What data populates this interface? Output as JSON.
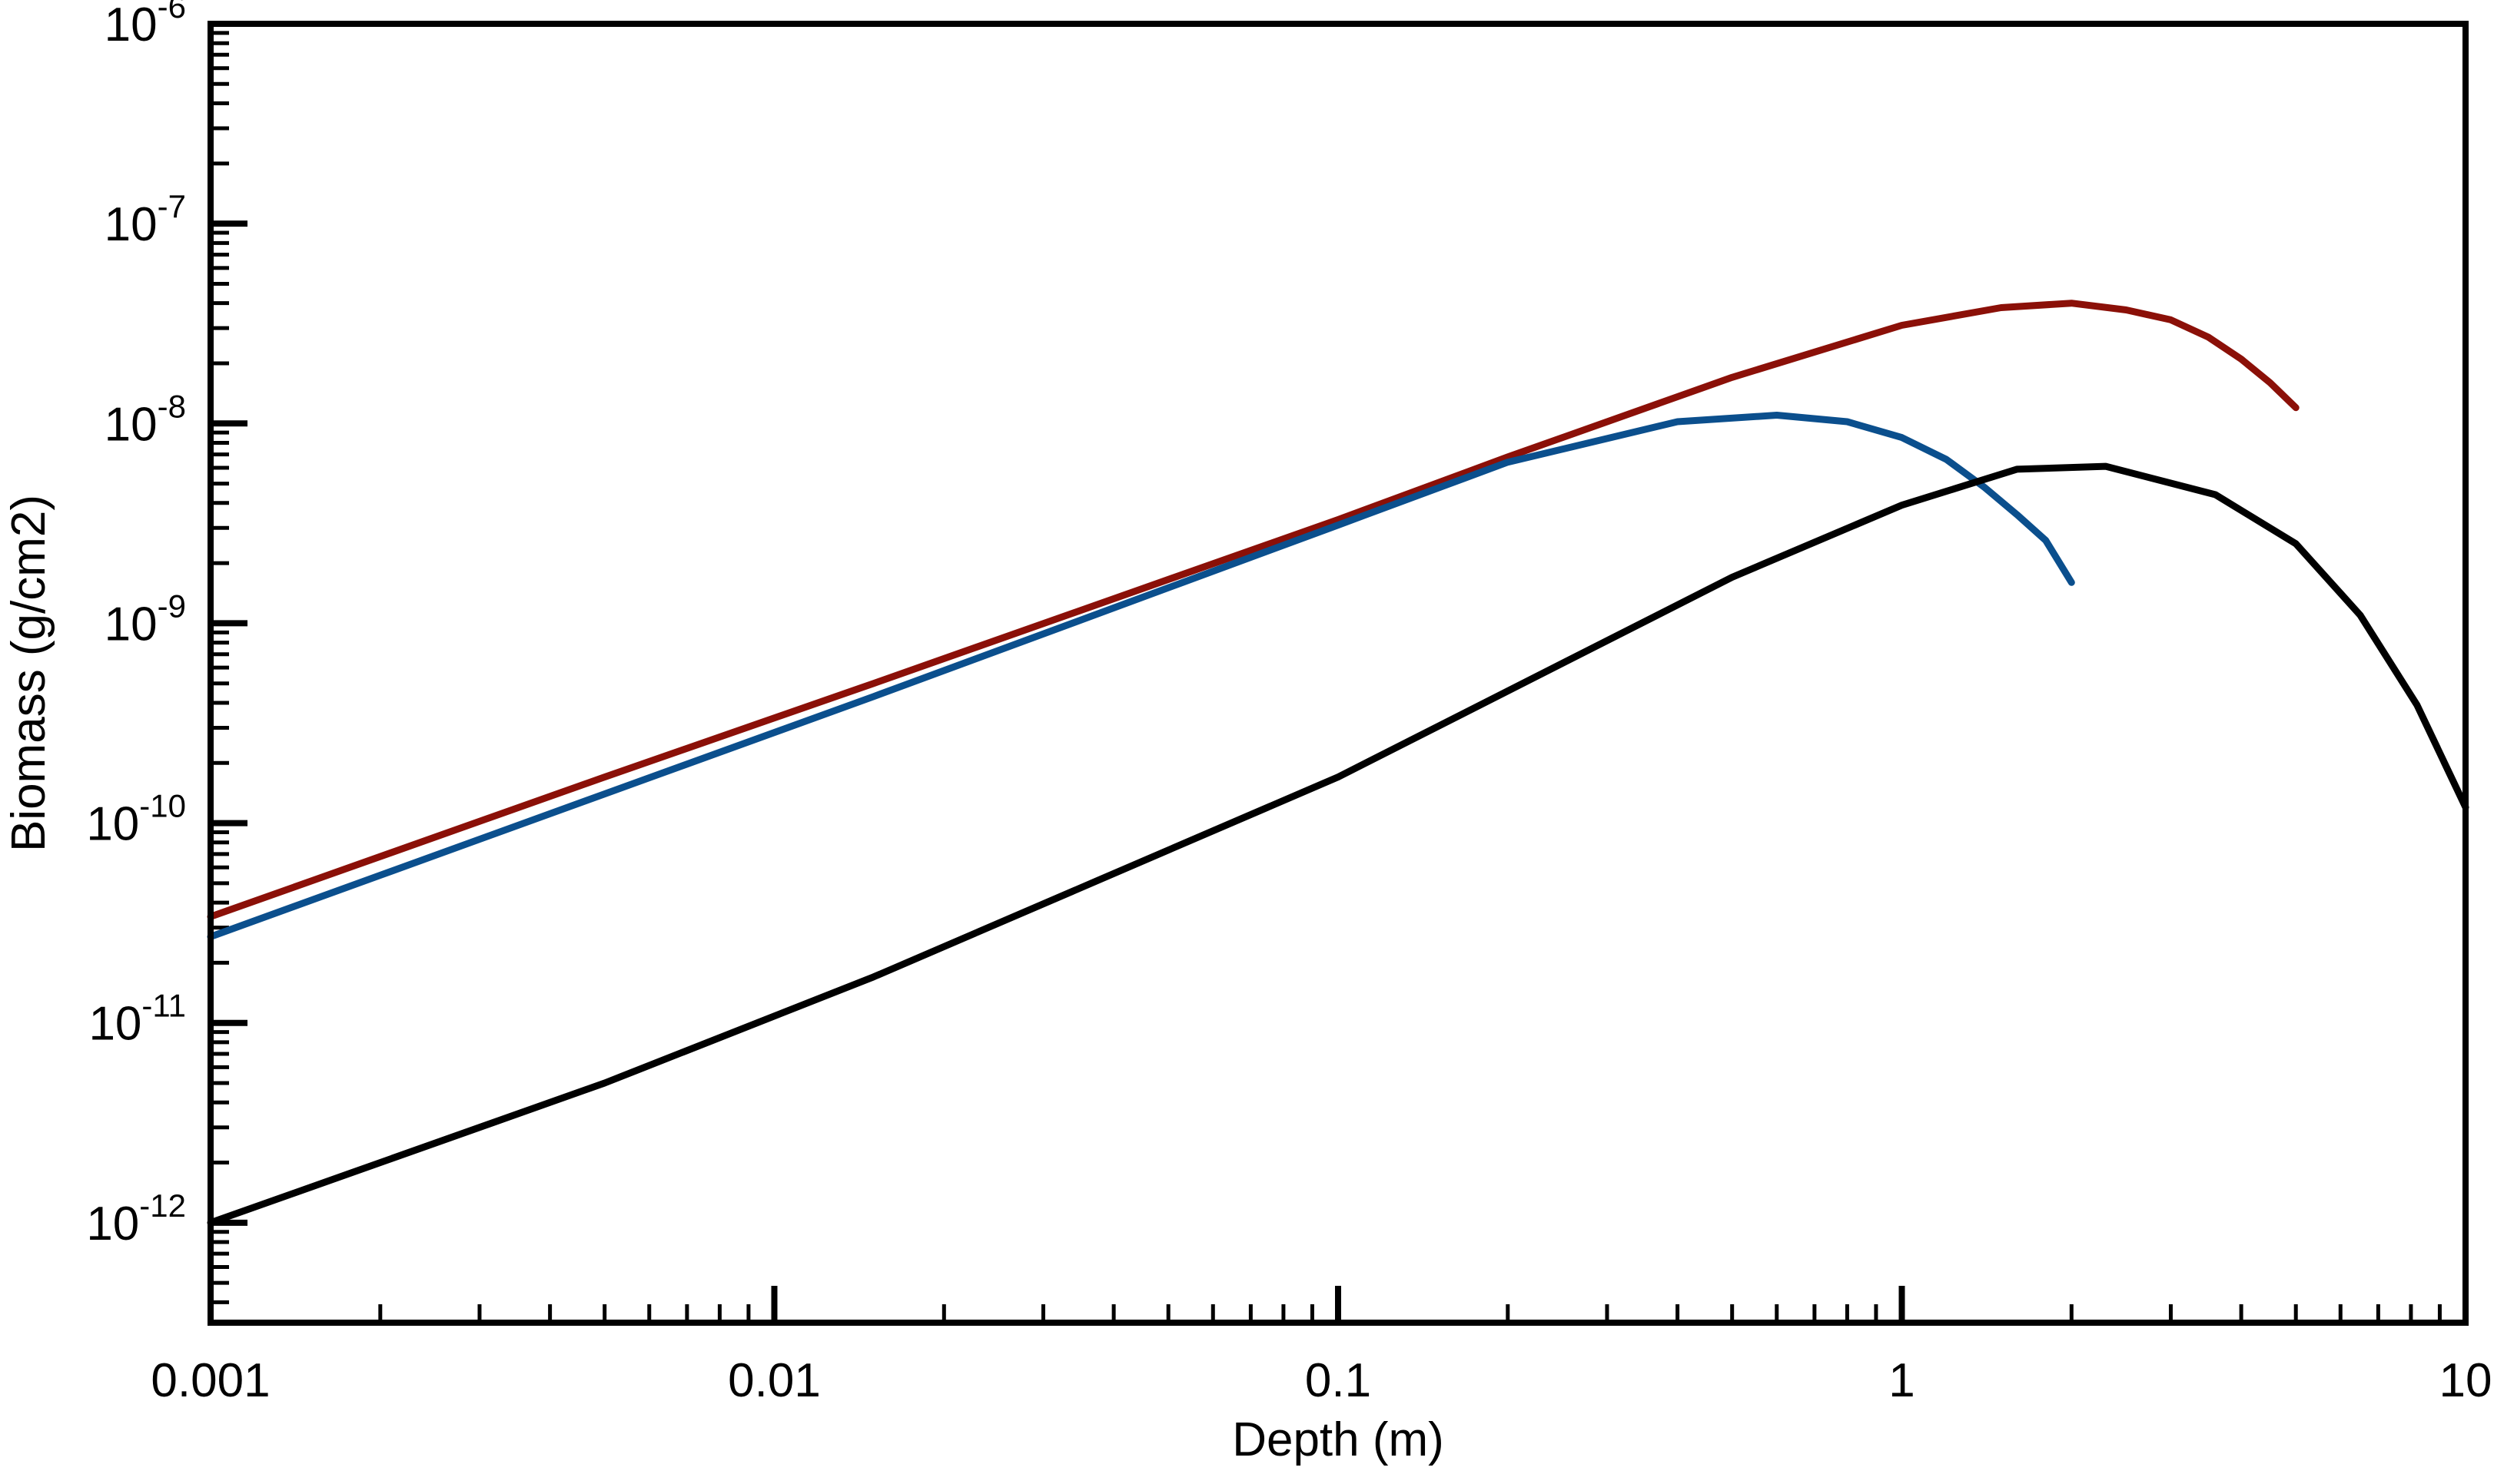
{
  "chart_data": {
    "type": "line",
    "title": "",
    "xlabel": "Depth (m)",
    "ylabel": "Biomass (g/cm2)",
    "x_scale": "log",
    "y_scale": "log",
    "xlim": [
      0.001,
      10
    ],
    "ylim": [
      3.16e-13,
      1e-06
    ],
    "grid": false,
    "legend": "none",
    "x_ticks": [
      {
        "value": 0.001,
        "label": "0.001"
      },
      {
        "value": 0.01,
        "label": "0.01"
      },
      {
        "value": 0.1,
        "label": "0.1"
      },
      {
        "value": 1,
        "label": "1"
      },
      {
        "value": 10,
        "label": "10"
      }
    ],
    "y_ticks": [
      {
        "value": 1e-12,
        "base": "10",
        "exp": "-12"
      },
      {
        "value": 1e-11,
        "base": "10",
        "exp": "-11"
      },
      {
        "value": 1e-10,
        "base": "10",
        "exp": "-10"
      },
      {
        "value": 1e-09,
        "base": "10",
        "exp": "-9"
      },
      {
        "value": 1e-08,
        "base": "10",
        "exp": "-8"
      },
      {
        "value": 1e-07,
        "base": "10",
        "exp": "-7"
      },
      {
        "value": 1e-06,
        "base": "10",
        "exp": "-6"
      }
    ],
    "series": [
      {
        "color": "#8b1008",
        "x": [
          0.001,
          0.005,
          0.015,
          0.1,
          0.2,
          0.5,
          1,
          1.5,
          2,
          2.5,
          3,
          3.5,
          4,
          4.5,
          5
        ],
        "y": [
          3.4e-11,
          1.7e-10,
          5e-10,
          3.3e-09,
          6.8e-09,
          1.7e-08,
          3.1e-08,
          3.8e-08,
          4e-08,
          3.7e-08,
          3.3e-08,
          2.7e-08,
          2.1e-08,
          1.6e-08,
          1.2e-08
        ]
      },
      {
        "color": "#0b4f8d",
        "x": [
          0.001,
          0.005,
          0.015,
          0.1,
          0.2,
          0.4,
          0.6,
          0.8,
          1,
          1.2,
          1.4,
          1.6,
          1.8,
          2
        ],
        "y": [
          2.7e-11,
          1.4e-10,
          4.3e-10,
          3.1e-09,
          6.4e-09,
          1.02e-08,
          1.1e-08,
          1.02e-08,
          8.5e-09,
          6.6e-09,
          4.8e-09,
          3.5e-09,
          2.6e-09,
          1.6e-09
        ]
      },
      {
        "color": "#000000",
        "x": [
          0.001,
          0.005,
          0.015,
          0.1,
          0.5,
          1,
          1.6,
          2.3,
          3.6,
          5,
          6.5,
          8.2,
          10
        ],
        "y": [
          1e-12,
          5e-12,
          1.7e-11,
          1.7e-10,
          1.7e-09,
          3.9e-09,
          5.9e-09,
          6.1e-09,
          4.4e-09,
          2.5e-09,
          1.1e-09,
          3.9e-10,
          1.2e-10
        ]
      }
    ]
  }
}
